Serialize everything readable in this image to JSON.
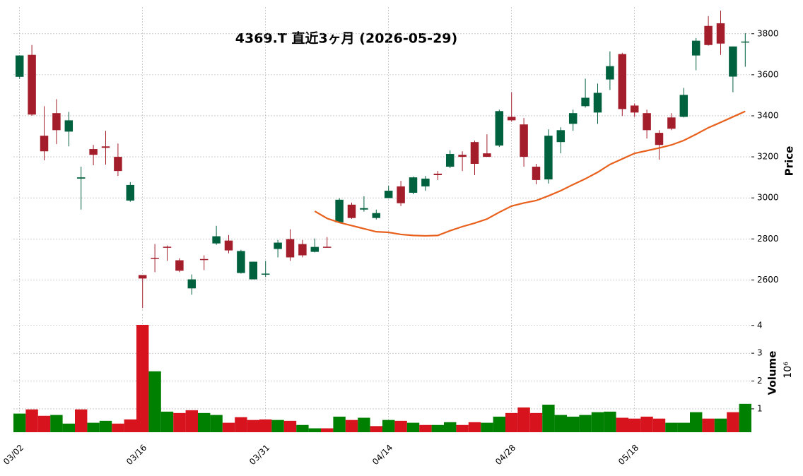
{
  "chart_data": {
    "type": "candlestick",
    "title": "4369.T  直近3ヶ月  (2026-05-29)",
    "categories": [
      "03/02",
      null,
      null,
      null,
      null,
      null,
      null,
      null,
      null,
      null,
      "03/16",
      null,
      null,
      null,
      null,
      null,
      null,
      null,
      null,
      null,
      "03/31",
      null,
      null,
      null,
      null,
      null,
      null,
      null,
      null,
      null,
      "04/14",
      null,
      null,
      null,
      null,
      null,
      null,
      null,
      null,
      null,
      "04/28",
      null,
      null,
      null,
      null,
      null,
      null,
      null,
      null,
      null,
      "05/18",
      null,
      null,
      null,
      null,
      null,
      null,
      null,
      null,
      null
    ],
    "open": [
      3590,
      3697,
      3303,
      3413,
      3323,
      3094,
      3238,
      3251,
      3200,
      2987,
      2624,
      2708,
      2762,
      2696,
      2559,
      2702,
      2778,
      2792,
      2634,
      2603,
      2627,
      2751,
      2799,
      2775,
      2737,
      2762,
      2881,
      2967,
      2943,
      2902,
      2999,
      3056,
      3025,
      3056,
      3118,
      3152,
      3210,
      3272,
      3217,
      3255,
      3395,
      3358,
      3152,
      3090,
      3272,
      3361,
      3447,
      3416,
      3577,
      3701,
      3450,
      3413,
      3317,
      3392,
      3395,
      3694,
      3838,
      3851,
      3591,
      3759
    ],
    "high": [
      3695,
      3745,
      3447,
      3481,
      3419,
      3152,
      3258,
      3327,
      3265,
      3077,
      2624,
      2775,
      2768,
      2706,
      2627,
      2720,
      2864,
      2819,
      2747,
      2689,
      2693,
      2795,
      2847,
      2795,
      2802,
      2809,
      2998,
      2977,
      3008,
      2943,
      3059,
      3083,
      3104,
      3107,
      3131,
      3231,
      3227,
      3279,
      3310,
      3430,
      3515,
      3389,
      3166,
      3334,
      3344,
      3430,
      3581,
      3557,
      3714,
      3707,
      3460,
      3430,
      3330,
      3413,
      3536,
      3779,
      3886,
      3913,
      3738,
      3803
    ],
    "low": [
      3580,
      3400,
      3183,
      3262,
      3251,
      2943,
      3159,
      3162,
      3107,
      2981,
      2463,
      2638,
      2693,
      2638,
      2528,
      2648,
      2771,
      2730,
      2631,
      2603,
      2614,
      2710,
      2693,
      2710,
      2734,
      2758,
      2878,
      2898,
      2933,
      2895,
      2998,
      2960,
      3018,
      3035,
      3087,
      3145,
      3131,
      3111,
      3200,
      3248,
      3371,
      3152,
      3066,
      3070,
      3217,
      3327,
      3440,
      3361,
      3526,
      3399,
      3395,
      3289,
      3186,
      3330,
      3392,
      3622,
      3742,
      3697,
      3515,
      3639
    ],
    "close": [
      3694,
      3406,
      3227,
      3330,
      3378,
      3100,
      3210,
      3244,
      3131,
      3063,
      2607,
      2705,
      2758,
      2645,
      2603,
      2698,
      2813,
      2744,
      2741,
      2689,
      2631,
      2782,
      2710,
      2720,
      2761,
      2759,
      2991,
      2902,
      2950,
      2926,
      3035,
      2974,
      3100,
      3094,
      3111,
      3214,
      3200,
      3166,
      3200,
      3423,
      3378,
      3200,
      3087,
      3303,
      3330,
      3413,
      3488,
      3512,
      3642,
      3433,
      3416,
      3330,
      3258,
      3337,
      3502,
      3766,
      3745,
      3752,
      3738,
      3762
    ],
    "up_color": "#00613e",
    "down_color": "#a31d2b",
    "ylabel": "Price",
    "ylim": [
      2450,
      3930
    ],
    "yticks": [
      2600,
      2800,
      3000,
      3200,
      3400,
      3600,
      3800
    ],
    "grid": true,
    "ma": {
      "color": "#e8601c",
      "values": [
        null,
        null,
        null,
        null,
        null,
        null,
        null,
        null,
        null,
        null,
        null,
        null,
        null,
        null,
        null,
        null,
        null,
        null,
        null,
        null,
        null,
        null,
        null,
        null,
        2935,
        2900,
        2880,
        2865,
        2850,
        2835,
        2832,
        2822,
        2817,
        2815,
        2817,
        2840,
        2860,
        2877,
        2897,
        2930,
        2960,
        2975,
        2987,
        3010,
        3035,
        3065,
        3093,
        3125,
        3163,
        3190,
        3217,
        3230,
        3243,
        3258,
        3280,
        3310,
        3342,
        3368,
        3395,
        3422
      ]
    },
    "volume": {
      "ylabel": "Volume",
      "exponent": "10⁶",
      "up_color": "#008000",
      "down_color": "#d7141e",
      "ylim": [
        0.16,
        4.4
      ],
      "yticks": [
        1,
        2,
        3,
        4
      ],
      "values": [
        0.83,
        0.98,
        0.75,
        0.78,
        0.47,
        0.98,
        0.5,
        0.57,
        0.47,
        0.62,
        4.02,
        2.35,
        0.9,
        0.85,
        0.95,
        0.85,
        0.78,
        0.5,
        0.7,
        0.6,
        0.62,
        0.6,
        0.57,
        0.42,
        0.3,
        0.3,
        0.72,
        0.6,
        0.68,
        0.38,
        0.6,
        0.57,
        0.5,
        0.42,
        0.42,
        0.52,
        0.42,
        0.52,
        0.5,
        0.72,
        0.85,
        1.05,
        0.85,
        1.15,
        0.78,
        0.72,
        0.78,
        0.88,
        0.9,
        0.68,
        0.65,
        0.72,
        0.65,
        0.5,
        0.5,
        0.88,
        0.65,
        0.65,
        0.88,
        1.18
      ]
    }
  }
}
